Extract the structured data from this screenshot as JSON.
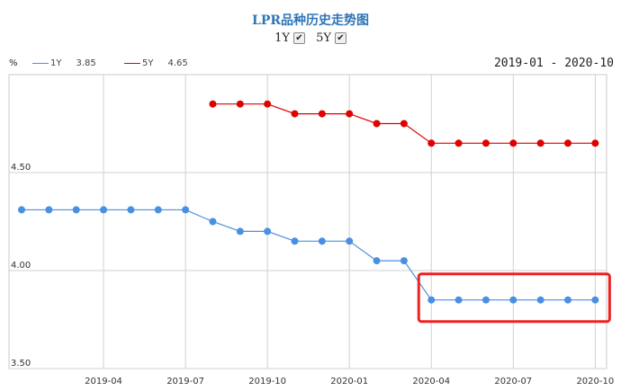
{
  "title": "LPR品种历史走势图",
  "toggles": [
    {
      "label": "1Y",
      "checked": true
    },
    {
      "label": "5Y",
      "checked": true
    }
  ],
  "unit": "%",
  "date_range": "2019-01 - 2020-10",
  "legend": [
    {
      "name": "1Y",
      "value": "3.85",
      "color": "#4a90e2"
    },
    {
      "name": "5Y",
      "value": "4.65",
      "color": "#e00000"
    }
  ],
  "highlight_color": "#ee2222",
  "chart_data": {
    "type": "line",
    "x": [
      "2019-01",
      "2019-02",
      "2019-03",
      "2019-04",
      "2019-05",
      "2019-06",
      "2019-07",
      "2019-08",
      "2019-09",
      "2019-10",
      "2019-11",
      "2019-12",
      "2020-01",
      "2020-02",
      "2020-03",
      "2020-04",
      "2020-05",
      "2020-06",
      "2020-07",
      "2020-08",
      "2020-09",
      "2020-10"
    ],
    "x_tick_labels": [
      "2019-04",
      "2019-07",
      "2019-10",
      "2020-01",
      "2020-04",
      "2020-07",
      "2020-10"
    ],
    "y_tick_labels": [
      "4.50",
      "4.00",
      "3.50"
    ],
    "y_ticks": [
      4.5,
      4.0,
      3.5
    ],
    "ylim": [
      3.5,
      5.0
    ],
    "grid": true,
    "series": [
      {
        "name": "1Y",
        "color": "#4a90e2",
        "values": [
          4.31,
          4.31,
          4.31,
          4.31,
          4.31,
          4.31,
          4.31,
          4.25,
          4.2,
          4.2,
          4.15,
          4.15,
          4.15,
          4.05,
          4.05,
          3.85,
          3.85,
          3.85,
          3.85,
          3.85,
          3.85,
          3.85
        ]
      },
      {
        "name": "5Y",
        "color": "#e00000",
        "values": [
          null,
          null,
          null,
          null,
          null,
          null,
          null,
          4.85,
          4.85,
          4.85,
          4.8,
          4.8,
          4.8,
          4.75,
          4.75,
          4.65,
          4.65,
          4.65,
          4.65,
          4.65,
          4.65,
          4.65
        ]
      }
    ],
    "annotation": {
      "type": "highlight-box",
      "x_from": "2020-04",
      "x_to": "2020-10",
      "series": "1Y"
    }
  }
}
